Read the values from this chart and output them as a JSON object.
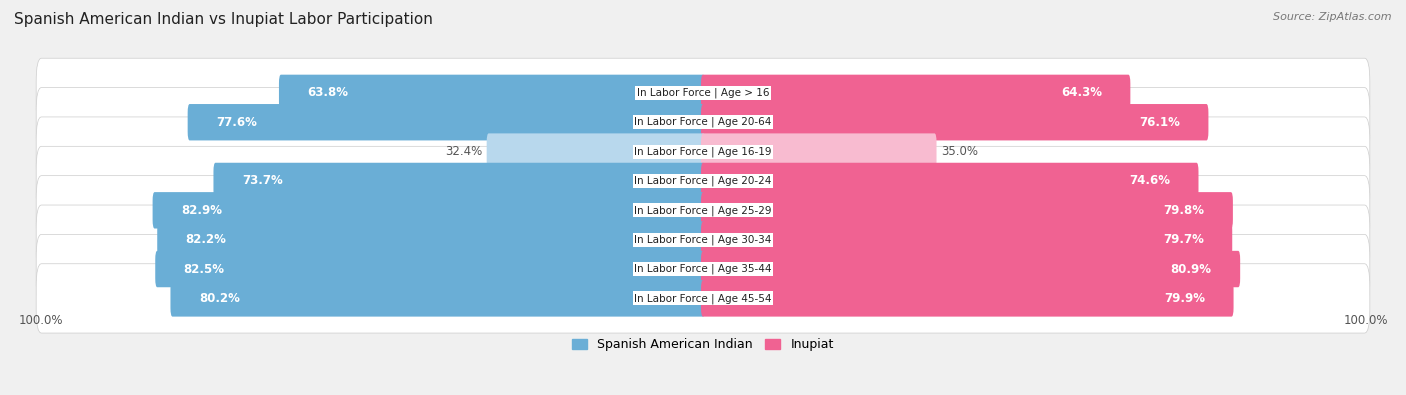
{
  "title": "Spanish American Indian vs Inupiat Labor Participation",
  "source": "Source: ZipAtlas.com",
  "categories": [
    "In Labor Force | Age > 16",
    "In Labor Force | Age 20-64",
    "In Labor Force | Age 16-19",
    "In Labor Force | Age 20-24",
    "In Labor Force | Age 25-29",
    "In Labor Force | Age 30-34",
    "In Labor Force | Age 35-44",
    "In Labor Force | Age 45-54"
  ],
  "spanish": [
    63.8,
    77.6,
    32.4,
    73.7,
    82.9,
    82.2,
    82.5,
    80.2
  ],
  "inupiat": [
    64.3,
    76.1,
    35.0,
    74.6,
    79.8,
    79.7,
    80.9,
    79.9
  ],
  "spanish_color": "#6aaed6",
  "spanish_color_light": "#b8d8ed",
  "inupiat_color": "#f06292",
  "inupiat_color_light": "#f8bbd0",
  "bg_color": "#f0f0f0",
  "row_bg_color": "#ffffff",
  "legend_spanish": "Spanish American Indian",
  "legend_inupiat": "Inupiat",
  "max_value": 100.0,
  "title_fontsize": 11,
  "source_fontsize": 8,
  "bar_label_fontsize": 8.5,
  "category_fontsize": 7.5,
  "legend_fontsize": 9,
  "axis_label": "100.0%"
}
